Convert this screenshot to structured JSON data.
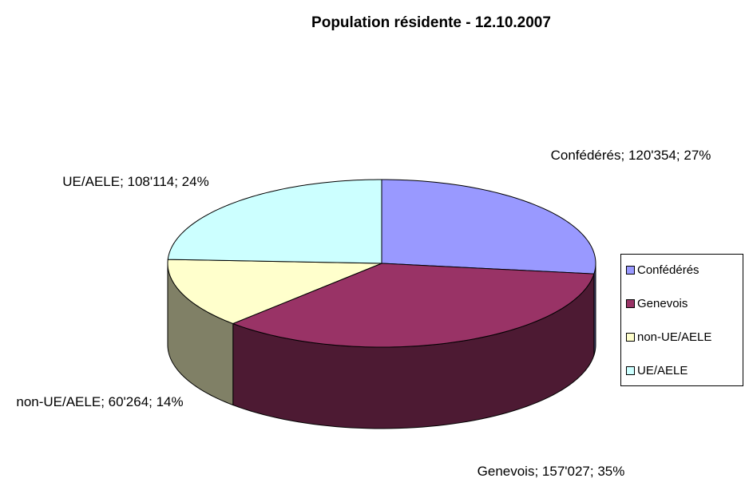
{
  "chart_data": {
    "type": "pie",
    "title": "Population résidente - 12.10.2007",
    "categories": [
      "Confédérés",
      "Genevois",
      "non-UE/AELE",
      "UE/AELE"
    ],
    "values": [
      120354,
      157027,
      60264,
      108114
    ],
    "value_labels": [
      "Confédérés; 120'354; 27%",
      "Genevois; 157'027; 35%",
      "non-UE/AELE; 60'264; 14%",
      "UE/AELE; 108'114; 24%"
    ],
    "colors": [
      "#9999ff",
      "#993366",
      "#ffffcc",
      "#ccffff"
    ],
    "legend": "right"
  }
}
